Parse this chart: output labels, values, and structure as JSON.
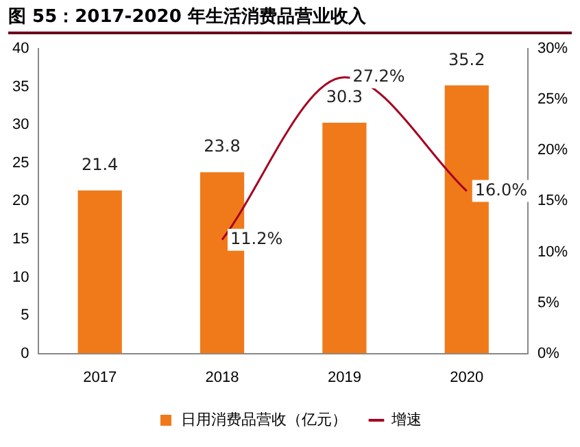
{
  "chart_data": {
    "type": "bar",
    "title": "图 55：2017-2020 年生活消费品营业收入",
    "categories": [
      "2017",
      "2018",
      "2019",
      "2020"
    ],
    "series": [
      {
        "name": "日用消费品营收（亿元）",
        "color": "#f07a1a",
        "values": [
          21.4,
          23.8,
          30.3,
          35.2
        ],
        "value_labels": [
          "21.4",
          "23.8",
          "30.3",
          "35.2"
        ]
      },
      {
        "name": "增速",
        "type": "line",
        "axis": "y2",
        "color": "#a50021",
        "values": [
          null,
          11.2,
          27.2,
          16.0
        ],
        "value_labels": [
          null,
          "11.2%",
          "27.2%",
          "16.0%"
        ]
      }
    ],
    "ylim": [
      0,
      40
    ],
    "yticks": [
      0,
      5,
      10,
      15,
      20,
      25,
      30,
      35,
      40
    ],
    "y2lim": [
      0,
      30
    ],
    "y2ticks": [
      {
        "value": 0,
        "label": "0%"
      },
      {
        "value": 5,
        "label": "5%"
      },
      {
        "value": 10,
        "label": "10%"
      },
      {
        "value": 15,
        "label": "15%"
      },
      {
        "value": 20,
        "label": "20%"
      },
      {
        "value": 25,
        "label": "25%"
      },
      {
        "value": 30,
        "label": "30%"
      }
    ],
    "grid": false,
    "legend": "bottom",
    "marker": "none",
    "line_style": "solid"
  }
}
